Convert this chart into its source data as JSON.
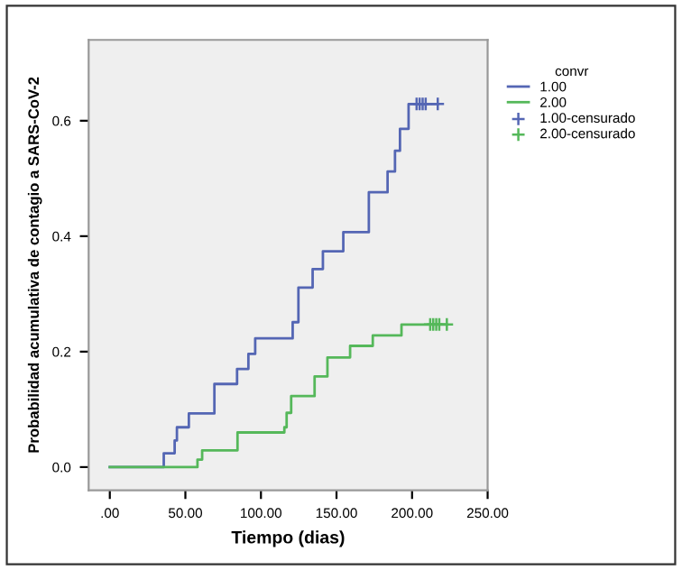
{
  "chart_data": {
    "type": "step",
    "xlabel": "Tiempo (dias)",
    "ylabel": "Probabilidad acumulativa de contagio a SARS-CoV-2",
    "legend_title": "convr",
    "legend": "right",
    "xlim": [
      -14,
      250
    ],
    "ylim": [
      -0.04,
      0.74
    ],
    "xticks": [
      {
        "value": 0,
        "label": ".00"
      },
      {
        "value": 50,
        "label": "50.00"
      },
      {
        "value": 100,
        "label": "100.00"
      },
      {
        "value": 150,
        "label": "150.00"
      },
      {
        "value": 200,
        "label": "200.00"
      },
      {
        "value": 250,
        "label": "250.00"
      }
    ],
    "yticks": [
      {
        "value": 0,
        "label": "0.0"
      },
      {
        "value": 0.2,
        "label": "0.2"
      },
      {
        "value": 0.4,
        "label": "0.4"
      },
      {
        "value": 0.6,
        "label": "0.6"
      }
    ],
    "grid": false,
    "series": [
      {
        "name": "1.00",
        "color": "#5466b4",
        "x": [
          0,
          35.7,
          42.9,
          44.4,
          52.3,
          69.2,
          84.2,
          91.7,
          96.2,
          121,
          124.8,
          134.2,
          141,
          154.5,
          171.4,
          183.8,
          188.7,
          192,
          197.7,
          217
        ],
        "values": [
          0,
          0.024,
          0.046,
          0.069,
          0.093,
          0.144,
          0.17,
          0.196,
          0.223,
          0.251,
          0.311,
          0.343,
          0.374,
          0.407,
          0.476,
          0.512,
          0.548,
          0.586,
          0.629,
          0.629
        ]
      },
      {
        "name": "2.00",
        "color": "#55b85a",
        "x": [
          0,
          58,
          61.1,
          84.5,
          115.5,
          117,
          120,
          135.5,
          144,
          159,
          174,
          193,
          223
        ],
        "values": [
          0,
          0.013,
          0.029,
          0.06,
          0.069,
          0.094,
          0.123,
          0.157,
          0.19,
          0.21,
          0.228,
          0.247,
          0.247
        ]
      },
      {
        "name": "1.00-censurado",
        "type": "scatter",
        "marker": "cross",
        "color": "#5466b4",
        "x": [
          203,
          205,
          207,
          209,
          217
        ],
        "values": [
          0.629,
          0.629,
          0.629,
          0.629,
          0.629
        ]
      },
      {
        "name": "2.00-censurado",
        "type": "scatter",
        "marker": "cross",
        "color": "#55b85a",
        "x": [
          212,
          214,
          216,
          218,
          223
        ],
        "values": [
          0.247,
          0.247,
          0.247,
          0.247,
          0.247
        ]
      }
    ]
  }
}
